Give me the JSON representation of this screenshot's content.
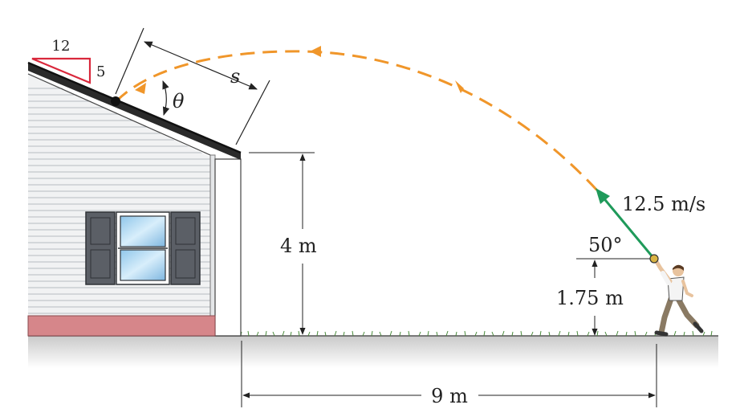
{
  "slope": {
    "run": "12",
    "rise": "5"
  },
  "labels": {
    "distance": "s",
    "angle_roof": "θ",
    "height_eave": "4 m",
    "speed": "12.5 m/s",
    "launch_angle": "50°",
    "launch_height": "1.75 m",
    "horizontal": "9 m"
  },
  "colors": {
    "trajectory": "#f0962a",
    "velocity": "#1f9a5a",
    "slope_triangle": "#d9283c",
    "foundation": "#d6868a",
    "shutter": "#5b5f66"
  }
}
